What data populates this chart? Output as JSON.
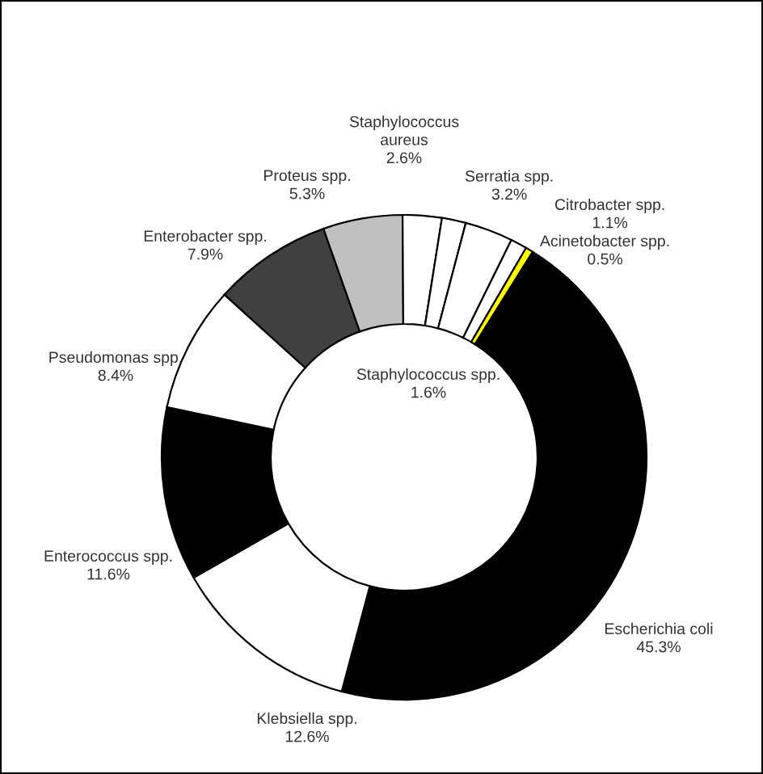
{
  "chart_data": {
    "type": "donut",
    "categories": [
      "Escherichia coli",
      "Klebsiella spp.",
      "Enterococcus spp.",
      "Pseudomonas spp.",
      "Enterobacter spp.",
      "Proteus spp.",
      "Staphylococcus\naureus",
      "Staphylococcus spp.",
      "Serratia spp.",
      "Citrobacter spp.",
      "Acinetobacter spp."
    ],
    "values": [
      45.3,
      12.6,
      11.6,
      8.4,
      7.9,
      5.3,
      2.6,
      1.6,
      3.2,
      1.1,
      0.5
    ],
    "value_labels": [
      "45.3%",
      "12.6%",
      "11.6%",
      "8.4%",
      "7.9%",
      "5.3%",
      "2.6%",
      "1.6%",
      "3.2%",
      "1.1%",
      "0.5%"
    ],
    "colors": [
      "#000000",
      "#ffffff",
      "#000000",
      "#ffffff",
      "#404040",
      "#c0c0c0",
      "#ffffff",
      "#ffffff",
      "#ffffff",
      "#ffffff",
      "#ffff00"
    ],
    "legend": false
  }
}
